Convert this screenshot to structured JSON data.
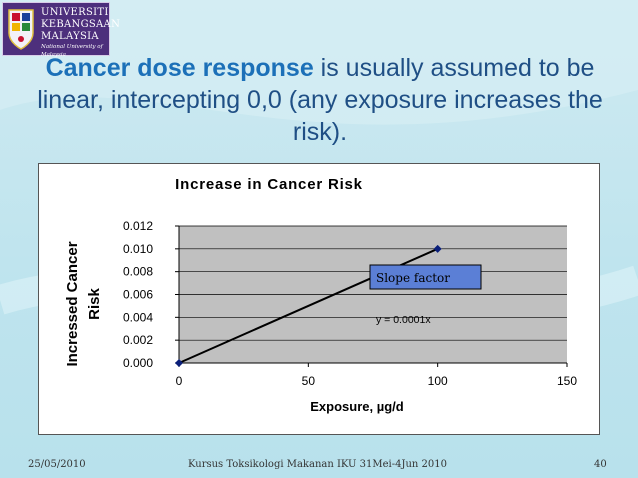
{
  "logo": {
    "line1": "UNIVERSITI",
    "line2": "KEBANGSAAN",
    "line3": "MALAYSIA",
    "tagline": "National University of Malaysia"
  },
  "slide": {
    "title_emphasis": "Cancer dose response",
    "title_rest": " is usually assumed to be linear, intercepting 0,0 (any exposure increases the risk)."
  },
  "chart_data": {
    "type": "line",
    "title": "Increase in Cancer Risk",
    "xlabel": "Exposure, µg/d",
    "ylabel": "Incressed Cancer Risk",
    "xlim": [
      0,
      150
    ],
    "ylim": [
      0,
      0.012
    ],
    "xticks": [
      "0",
      "50",
      "100",
      "150"
    ],
    "yticks": [
      "0.000",
      "0.002",
      "0.004",
      "0.006",
      "0.008",
      "0.010",
      "0.012"
    ],
    "grid": true,
    "series": [
      {
        "values": [
          {
            "x": 0,
            "y": 0
          },
          {
            "x": 100,
            "y": 0.01
          }
        ]
      }
    ],
    "annotations": {
      "slope_box": "Slope factor",
      "equation": "y = 0.0001x"
    },
    "colors": {
      "line": "#000000",
      "marker": "#0a1f7a",
      "plot_bg": "#c0c0c0",
      "box_bg": "#5b7fd6"
    }
  },
  "footer": {
    "date": "25/05/2010",
    "course": "Kursus Toksikologi Makanan IKU 31Mei-4Jun 2010",
    "page": "40"
  }
}
